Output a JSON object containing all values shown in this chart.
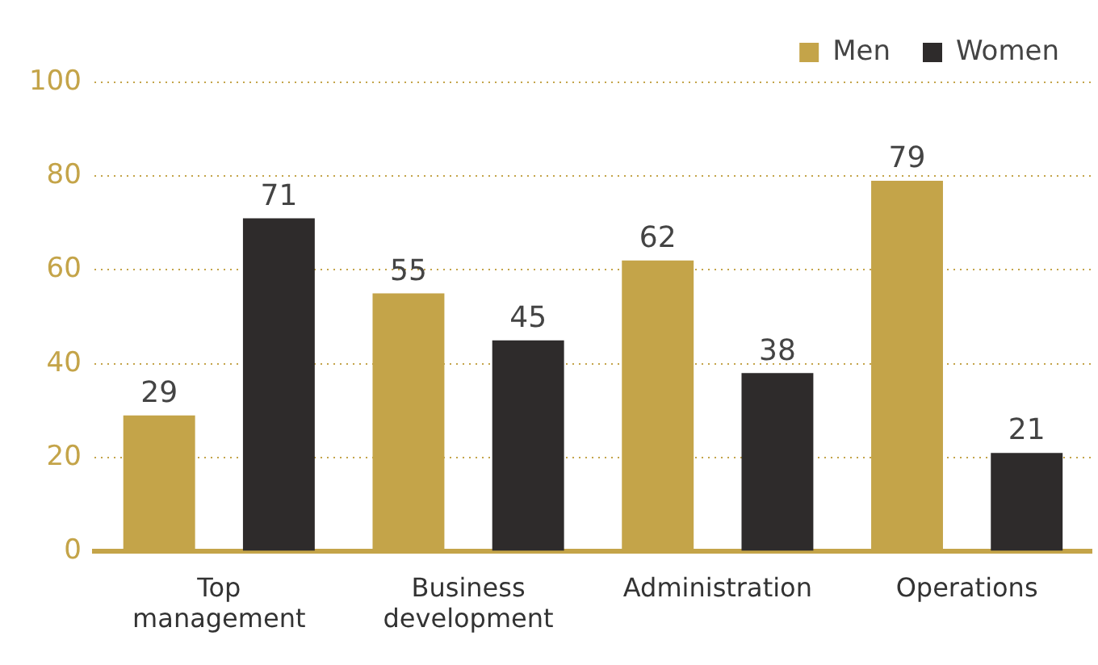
{
  "chart_data": {
    "type": "bar",
    "categories": [
      "Top management",
      "Business development",
      "Administration",
      "Operations"
    ],
    "series": [
      {
        "name": "Men",
        "color": "#c4a449",
        "values": [
          29,
          55,
          62,
          79
        ]
      },
      {
        "name": "Women",
        "color": "#2e2b2b",
        "values": [
          71,
          45,
          38,
          21
        ]
      }
    ],
    "ylim": [
      0,
      100
    ],
    "yticks": [
      0,
      20,
      40,
      60,
      80,
      100
    ],
    "grid": "y",
    "legend": "top right",
    "data_labels": true
  }
}
